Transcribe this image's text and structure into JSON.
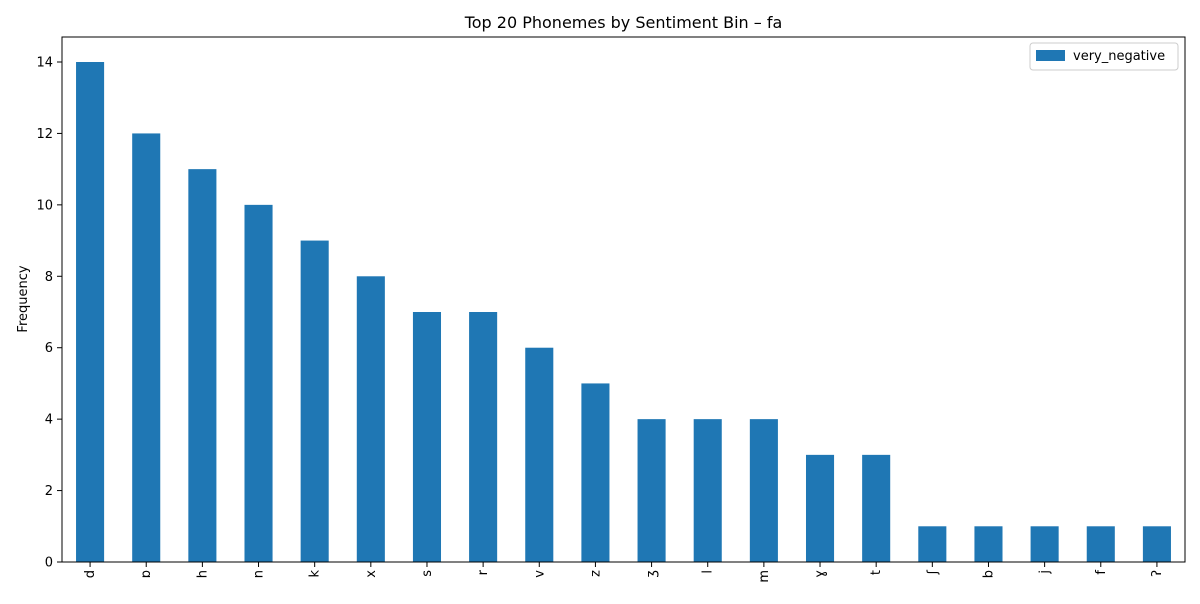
{
  "chart_data": {
    "type": "bar",
    "title": "Top 20 Phonemes by Sentiment Bin – fa",
    "xlabel": "",
    "ylabel": "Frequency",
    "ylim": [
      0,
      14.7
    ],
    "yticks": [
      0,
      2,
      4,
      6,
      8,
      10,
      12,
      14
    ],
    "grid": false,
    "legend_position": "top-right",
    "categories": [
      "d",
      "ɒ",
      "h",
      "n",
      "k",
      "x",
      "s",
      "r",
      "v",
      "z",
      "ʒ",
      "l",
      "m",
      "ɣ",
      "t",
      "ʃ",
      "b",
      "j",
      "f",
      "ʔ"
    ],
    "series": [
      {
        "name": "very_negative",
        "color": "#1f77b4",
        "values": [
          14,
          12,
          11,
          10,
          9,
          8,
          7,
          7,
          6,
          5,
          4,
          4,
          4,
          3,
          3,
          1,
          1,
          1,
          1,
          1
        ]
      }
    ]
  }
}
